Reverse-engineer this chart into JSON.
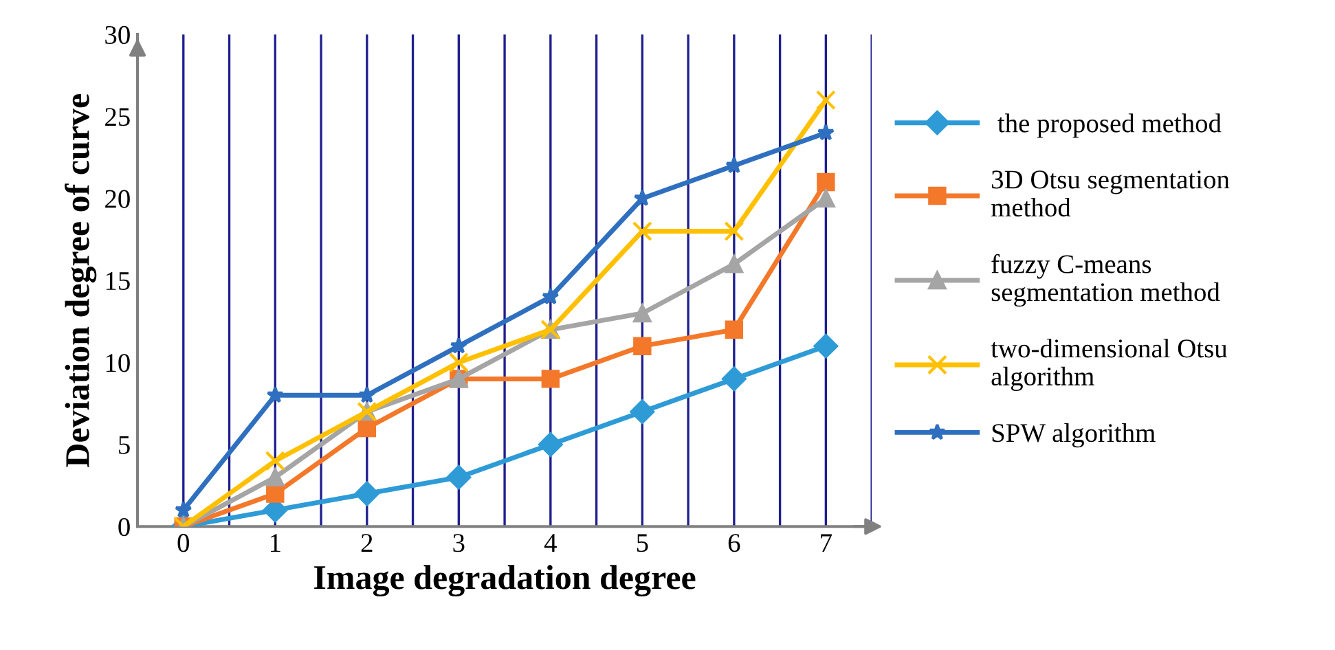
{
  "chart_data": {
    "type": "line",
    "xlabel": "Image degradation degree",
    "ylabel": "Deviation degree of curve",
    "x": [
      0,
      1,
      2,
      3,
      4,
      5,
      6,
      7
    ],
    "xlim": [
      -0.5,
      7.5
    ],
    "xticks": [
      0,
      1,
      2,
      3,
      4,
      5,
      6,
      7
    ],
    "ylim": [
      0,
      30
    ],
    "yticks": [
      0,
      5,
      10,
      15,
      20,
      25,
      30
    ],
    "grid": "x",
    "legend": "right",
    "line_style": "solid",
    "series": [
      {
        "name": " the proposed method",
        "color": "#2e9bd6",
        "marker": "diamond",
        "values": [
          0,
          1,
          2,
          3,
          5,
          7,
          9,
          11
        ]
      },
      {
        "name": "3D Otsu segmentation method",
        "color": "#f4782a",
        "marker": "square",
        "values": [
          0,
          2,
          6,
          9,
          9,
          11,
          12,
          21
        ]
      },
      {
        "name": "fuzzy C-means segmentation method",
        "color": "#a5a5a5",
        "marker": "triangle",
        "values": [
          0,
          3,
          7,
          9,
          12,
          13,
          16,
          20
        ]
      },
      {
        "name": "two-dimensional Otsu algorithm",
        "color": "#ffc000",
        "marker": "cross",
        "values": [
          0,
          4,
          7,
          10,
          12,
          18,
          18,
          26
        ]
      },
      {
        "name": "SPW algorithm",
        "color": "#2f6fbf",
        "marker": "star",
        "values": [
          1,
          8,
          8,
          11,
          14,
          20,
          22,
          24
        ]
      }
    ]
  }
}
